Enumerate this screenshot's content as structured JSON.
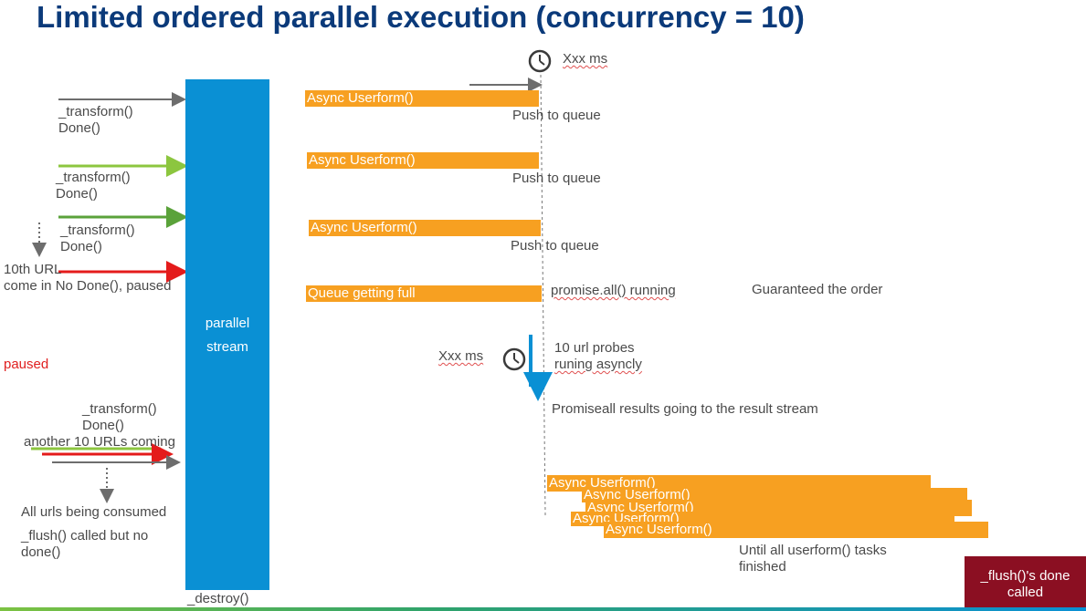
{
  "title": "Limited ordered parallel execution (concurrency =  10)",
  "stream": {
    "label_line1": "parallel",
    "label_line2": "stream",
    "destroy_label": "_destroy()"
  },
  "left": {
    "t1": "_transform()",
    "d1": "Done()",
    "t2": "_transform()",
    "d2": "Done()",
    "t3": "_transform()",
    "d3": "Done()",
    "tenth_line1": "10th URL",
    "tenth_line2": "come in No Done(), paused",
    "paused": "paused",
    "t4": "_transform()",
    "d4": "Done()",
    "another": "another 10 URLs coming",
    "consumed": "All urls being consumed",
    "flush_line1": "_flush() called but no",
    "flush_line2": "done()"
  },
  "middle": {
    "xxx_top": "Xxx ms",
    "bar1": "Async Userform()",
    "push1": "Push to queue",
    "bar2": "Async Userform()",
    "push2": "Push to queue",
    "bar3": "Async Userform()",
    "push3": "Push to queue",
    "bar4": "Queue getting full",
    "promise_running": "promise.all() running",
    "guaranteed": "Guaranteed the order",
    "xxx_mid": "Xxx ms",
    "probes_line1": "10 url probes",
    "probes_line2": "runing asyncly",
    "promiseall_results": "Promiseall results going to the result stream",
    "stack": [
      "Async Userform()",
      "Async Userform()",
      "Async Userform()",
      "Async Userform()",
      "Async Userform()"
    ],
    "until_line1": "Until all userform() tasks",
    "until_line2": "finished"
  },
  "flush_done": {
    "line1": "_flush()'s done",
    "line2": "called"
  },
  "colors": {
    "title": "#0b3a7a",
    "stream": "#0a90d4",
    "bar": "#f7a021",
    "flush_badge": "#8b0f22",
    "arrow_gray": "#6d6d6d",
    "arrow_green": "#8cc63f",
    "arrow_green_dark": "#5aa23a",
    "arrow_red": "#e41b1b",
    "arrow_blue": "#0a90d4"
  }
}
